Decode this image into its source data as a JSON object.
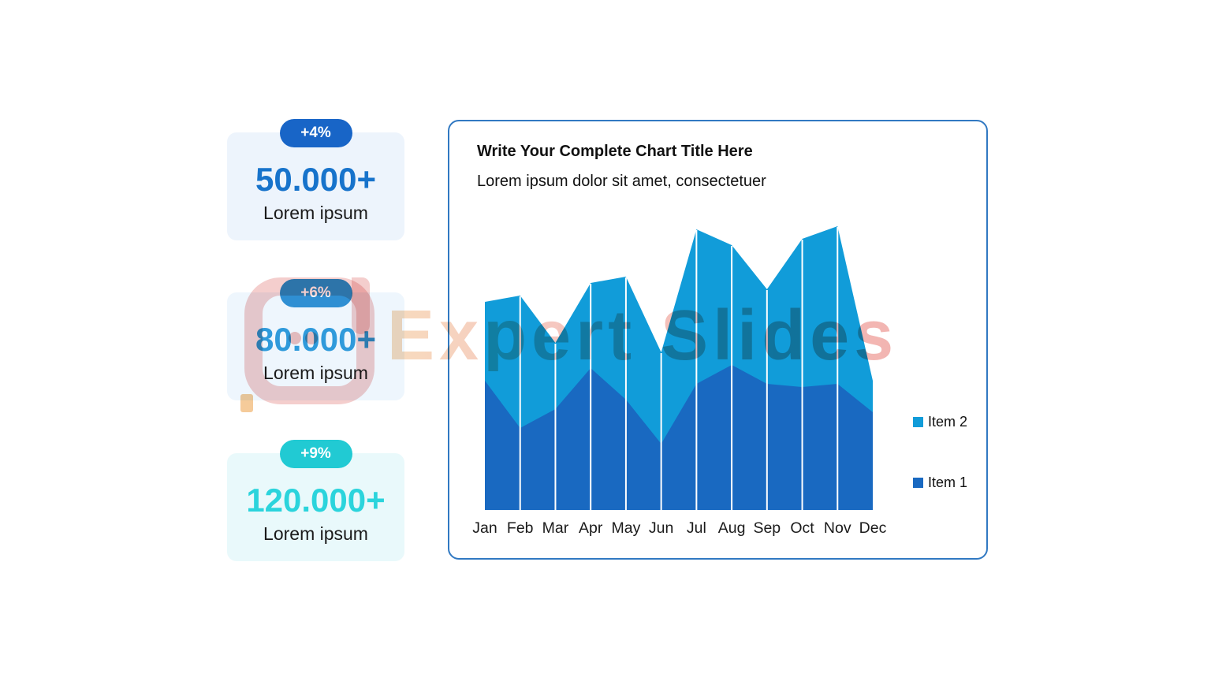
{
  "watermark": {
    "text": "Expert Slides"
  },
  "stats": [
    {
      "badge": "+4%",
      "value": "50.000+",
      "label": "Lorem ipsum",
      "badge_color": "#1865C7",
      "value_color": "#1773CB",
      "card_bg": "#EDF4FC"
    },
    {
      "badge": "+6%",
      "value": "80.000+",
      "label": "Lorem ipsum",
      "badge_color": "#2F8FD3",
      "value_color": "#2F9ADB",
      "card_bg": "#EEF6FD"
    },
    {
      "badge": "+9%",
      "value": "120.000+",
      "label": "Lorem ipsum",
      "badge_color": "#21CAD3",
      "value_color": "#2BD4DC",
      "card_bg": "#E9F9FB"
    }
  ],
  "chart_panel": {
    "title": "Write Your Complete Chart Title Here",
    "subtitle": "Lorem ipsum dolor sit amet, consectetuer",
    "border_color": "#3179C2"
  },
  "chart_data": {
    "type": "area",
    "stacked": true,
    "categories": [
      "Jan",
      "Feb",
      "Mar",
      "Apr",
      "May",
      "Jun",
      "Jul",
      "Aug",
      "Sep",
      "Oct",
      "Nov",
      "Dec"
    ],
    "series": [
      {
        "name": "Item 1",
        "color": "#1969C1",
        "values": [
          41,
          26,
          32,
          45,
          35,
          21,
          40,
          46,
          40,
          39,
          40,
          31
        ]
      },
      {
        "name": "Item 2",
        "color": "#119CD9",
        "values": [
          25,
          42,
          21,
          27,
          39,
          29,
          49,
          38,
          30,
          47,
          50,
          10
        ]
      }
    ],
    "ylim": [
      0,
      95
    ],
    "gridlines": "vertical-white",
    "legend_position": "right",
    "axis_label_color": "#1A1A1A"
  }
}
